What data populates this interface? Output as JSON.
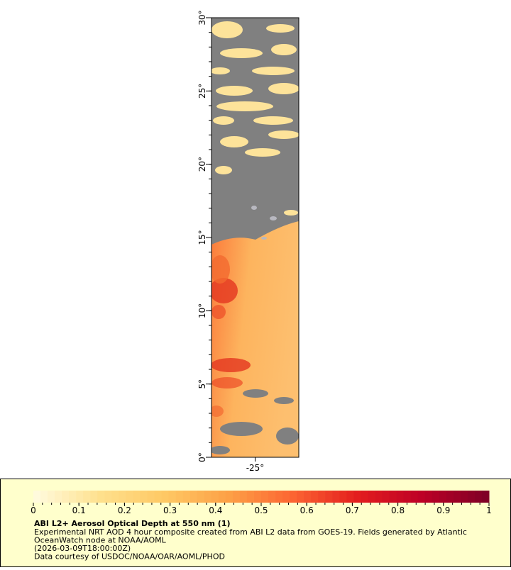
{
  "map": {
    "lat_range": [
      0,
      30
    ],
    "lon_range": [
      -28,
      -22
    ],
    "lat_ticks": [
      {
        "value": 0,
        "label": "0°"
      },
      {
        "value": 5,
        "label": "5°"
      },
      {
        "value": 10,
        "label": "10°"
      },
      {
        "value": 15,
        "label": "15°"
      },
      {
        "value": 20,
        "label": "20°"
      },
      {
        "value": 25,
        "label": "25°"
      },
      {
        "value": 30,
        "label": "30°"
      }
    ],
    "lon_ticks": [
      {
        "value": -25,
        "label": "-25°"
      }
    ]
  },
  "legend": {
    "range": [
      0,
      1
    ],
    "ticks": [
      0,
      0.1,
      0.2,
      0.3,
      0.4,
      0.5,
      0.6,
      0.7,
      0.8,
      0.9,
      1
    ],
    "title": "ABI L2+ Aerosol Optical Depth at 550 nm (1)",
    "lines": [
      "Experimental NRT AOD 4 hour composite created from ABI L2 data from GOES-19. Fields generated by Atlantic",
      "OceanWatch node at NOAA/AOML",
      "(2026-03-09T18:00:00Z)",
      "Data courtesy of USDOC/NOAA/OAR/AOML/PHOD"
    ]
  }
}
